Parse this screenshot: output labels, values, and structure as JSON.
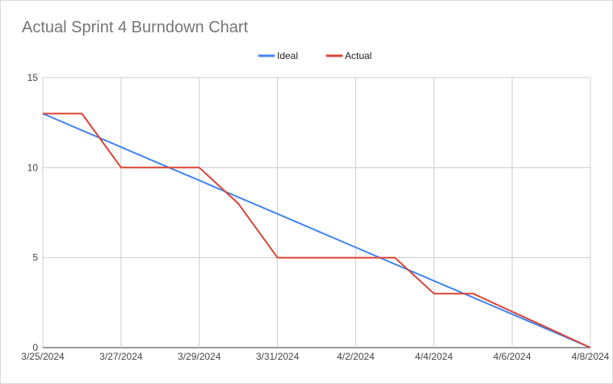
{
  "chart_data": {
    "type": "line",
    "title": "Actual Sprint 4 Burndown Chart",
    "xlabel": "",
    "ylabel": "",
    "x": [
      "3/25/2024",
      "3/26/2024",
      "3/27/2024",
      "3/28/2024",
      "3/29/2024",
      "3/30/2024",
      "3/31/2024",
      "4/1/2024",
      "4/2/2024",
      "4/3/2024",
      "4/4/2024",
      "4/5/2024",
      "4/6/2024",
      "4/7/2024",
      "4/8/2024"
    ],
    "x_tick_labels": [
      "3/25/2024",
      "3/27/2024",
      "3/29/2024",
      "3/31/2024",
      "4/2/2024",
      "4/4/2024",
      "4/6/2024",
      "4/8/2024"
    ],
    "ylim": [
      0,
      15
    ],
    "y_ticks": [
      0,
      5,
      10,
      15
    ],
    "grid": true,
    "legend_position": "top",
    "series": [
      {
        "name": "Ideal",
        "color": "#4285f4",
        "values": [
          13,
          12.07,
          11.14,
          10.21,
          9.29,
          8.36,
          7.43,
          6.5,
          5.57,
          4.64,
          3.71,
          2.79,
          1.86,
          0.93,
          0
        ]
      },
      {
        "name": "Actual",
        "color": "#db4437",
        "values": [
          13,
          13,
          10,
          10,
          10,
          8,
          5,
          5,
          5,
          5,
          3,
          3,
          2,
          1,
          0
        ]
      }
    ]
  }
}
